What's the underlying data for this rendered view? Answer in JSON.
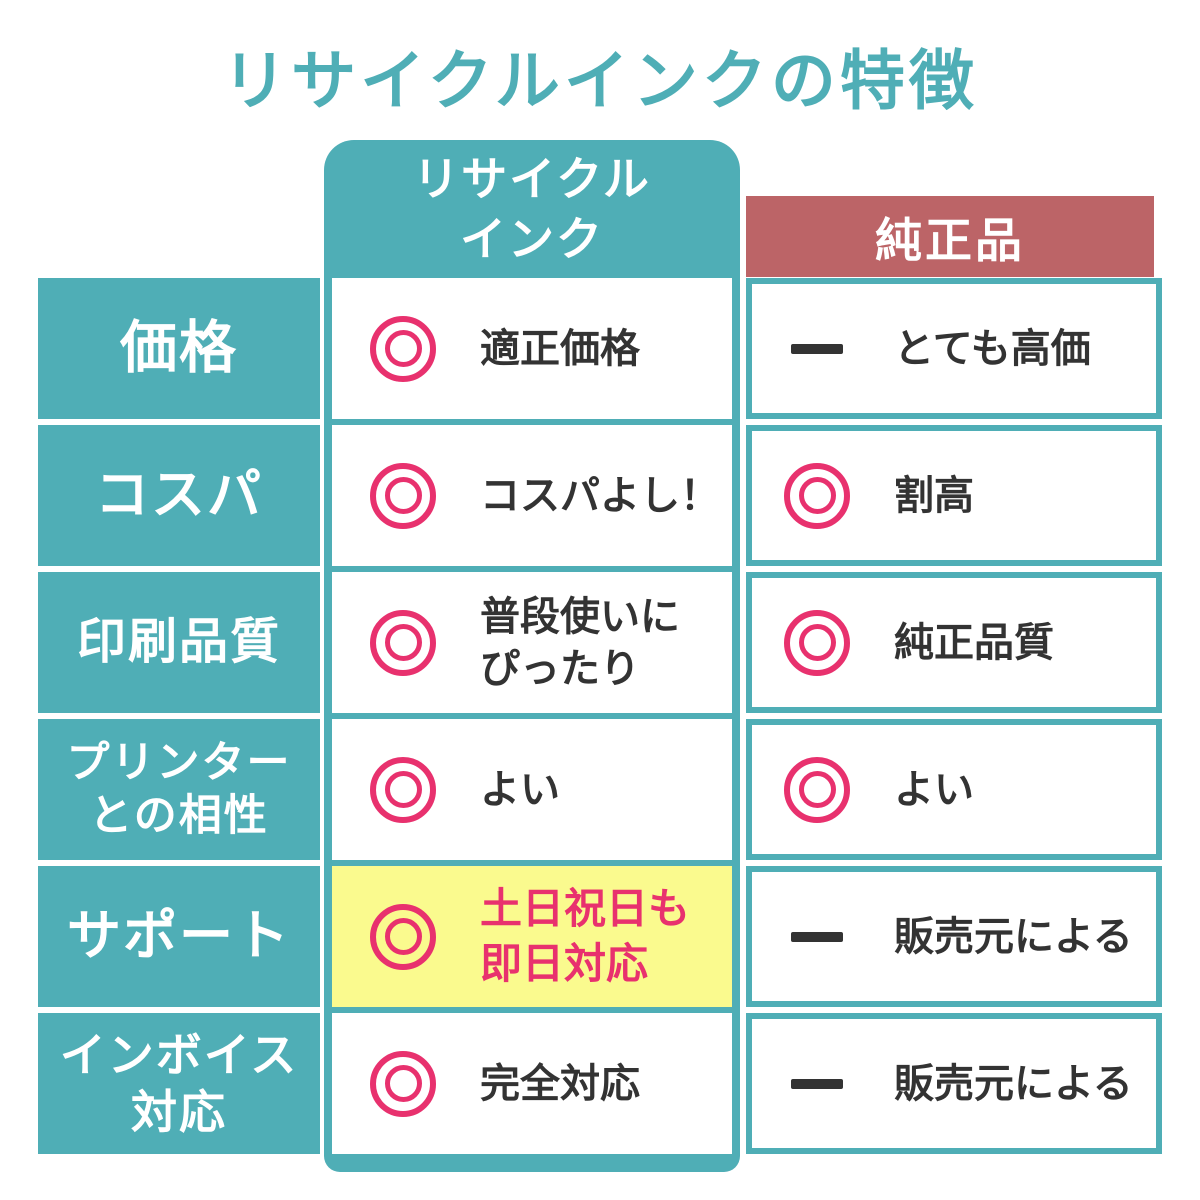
{
  "title": "リサイクルインクの特徴",
  "columns": {
    "recycled": "リサイクル\nインク",
    "genuine": "純正品"
  },
  "rows": [
    {
      "label": "価格",
      "recycled": {
        "icon": "double-circle",
        "text": "適正価格"
      },
      "genuine": {
        "icon": "dash",
        "text": "とても高価"
      }
    },
    {
      "label": "コスパ",
      "recycled": {
        "icon": "double-circle",
        "text": "コスパよし！"
      },
      "genuine": {
        "icon": "double-circle",
        "text": "割高"
      }
    },
    {
      "label": "印刷品質",
      "recycled": {
        "icon": "double-circle",
        "text": "普段使いに\nぴったり"
      },
      "genuine": {
        "icon": "double-circle",
        "text": "純正品質"
      }
    },
    {
      "label": "プリンター\nとの相性",
      "recycled": {
        "icon": "double-circle",
        "text": "よい"
      },
      "genuine": {
        "icon": "double-circle",
        "text": "よい"
      }
    },
    {
      "label": "サポート",
      "recycled": {
        "icon": "double-circle",
        "text": "土日祝日も\n即日対応",
        "highlight": true
      },
      "genuine": {
        "icon": "dash",
        "text": "販売元による"
      }
    },
    {
      "label": "インボイス\n対応",
      "recycled": {
        "icon": "double-circle",
        "text": "完全対応"
      },
      "genuine": {
        "icon": "dash",
        "text": "販売元による"
      }
    }
  ],
  "colors": {
    "teal": "#4FAEB6",
    "rose": "#BC6467",
    "pink": "#E8316E",
    "highlight_yellow": "#FAFA8E",
    "text_dark": "#333333"
  },
  "chart_data": {
    "type": "table",
    "title": "リサイクルインクの特徴",
    "columns": [
      "",
      "リサイクルインク",
      "純正品"
    ],
    "rows": [
      [
        "価格",
        "◎ 適正価格",
        "— とても高価"
      ],
      [
        "コスパ",
        "◎ コスパよし！",
        "◎ 割高"
      ],
      [
        "印刷品質",
        "◎ 普段使いにぴったり",
        "◎ 純正品質"
      ],
      [
        "プリンターとの相性",
        "◎ よい",
        "◎ よい"
      ],
      [
        "サポート",
        "◎ 土日祝日も即日対応（ハイライト）",
        "— 販売元による"
      ],
      [
        "インボイス対応",
        "◎ 完全対応",
        "— 販売元による"
      ]
    ],
    "legend_position": "none",
    "grid": true
  }
}
